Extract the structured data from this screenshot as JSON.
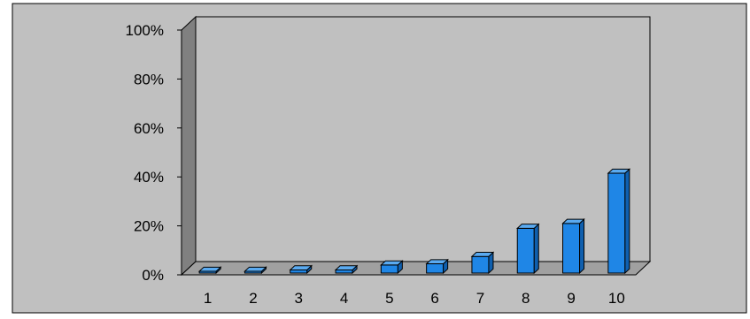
{
  "colors": {
    "plot_area": "#c0c0c0",
    "back_wall": "#c0c0c0",
    "side_wall": "#808080",
    "floor": "#a0a0a0",
    "bar_front": "#1f86e6",
    "bar_side": "#0f5fae",
    "bar_top": "#5aaaf0",
    "frame": "#000000",
    "axis_text": "#000000"
  },
  "chart_data": {
    "type": "bar",
    "title": "",
    "xlabel": "",
    "ylabel": "",
    "categories": [
      "1",
      "2",
      "3",
      "4",
      "5",
      "6",
      "7",
      "8",
      "9",
      "10"
    ],
    "series": [
      {
        "values": [
          0.5,
          0.3,
          2,
          2,
          4,
          4.5,
          7.5,
          19,
          21,
          41.5
        ]
      }
    ],
    "ylim": [
      0,
      100
    ],
    "yticks": [
      0,
      20,
      40,
      60,
      80,
      100
    ],
    "ytick_labels": [
      "0%",
      "20%",
      "40%",
      "60%",
      "80%",
      "100%"
    ],
    "grid": false,
    "legend": "none",
    "style": "3d-column"
  }
}
